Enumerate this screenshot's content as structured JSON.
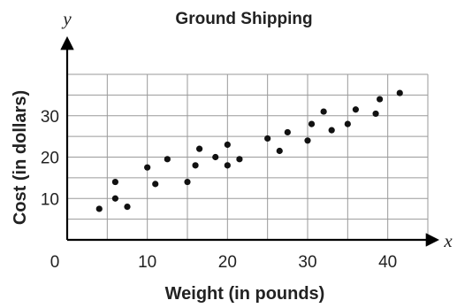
{
  "chart_data": {
    "type": "scatter",
    "title": "Ground Shipping",
    "xlabel": "Weight (in pounds)",
    "ylabel": "Cost (in dollars)",
    "x_axis_letter": "x",
    "y_axis_letter": "y",
    "origin_label": "0",
    "xlim": [
      0,
      45
    ],
    "ylim": [
      0,
      40
    ],
    "x_ticks": [
      10,
      20,
      30,
      40
    ],
    "y_ticks": [
      10,
      20,
      30
    ],
    "x_tick_labels": [
      "10",
      "20",
      "30",
      "40"
    ],
    "y_tick_labels": [
      "10",
      "20",
      "30"
    ],
    "grid": true,
    "grid_step": 5,
    "series": [
      {
        "points": [
          [
            4,
            7.5
          ],
          [
            6,
            14
          ],
          [
            6,
            10
          ],
          [
            7.5,
            8
          ],
          [
            10,
            17.5
          ],
          [
            11,
            13.5
          ],
          [
            12.5,
            19.5
          ],
          [
            15,
            14
          ],
          [
            16,
            18
          ],
          [
            16.5,
            22
          ],
          [
            18.5,
            20
          ],
          [
            20,
            23
          ],
          [
            20,
            18
          ],
          [
            21.5,
            19.5
          ],
          [
            25,
            24.5
          ],
          [
            26.5,
            21.5
          ],
          [
            27.5,
            26
          ],
          [
            30,
            24
          ],
          [
            30.5,
            28
          ],
          [
            32,
            31
          ],
          [
            33,
            26.5
          ],
          [
            35,
            28
          ],
          [
            36,
            31.5
          ],
          [
            38.5,
            30.5
          ],
          [
            39,
            34
          ],
          [
            41.5,
            35.5
          ]
        ]
      }
    ]
  }
}
